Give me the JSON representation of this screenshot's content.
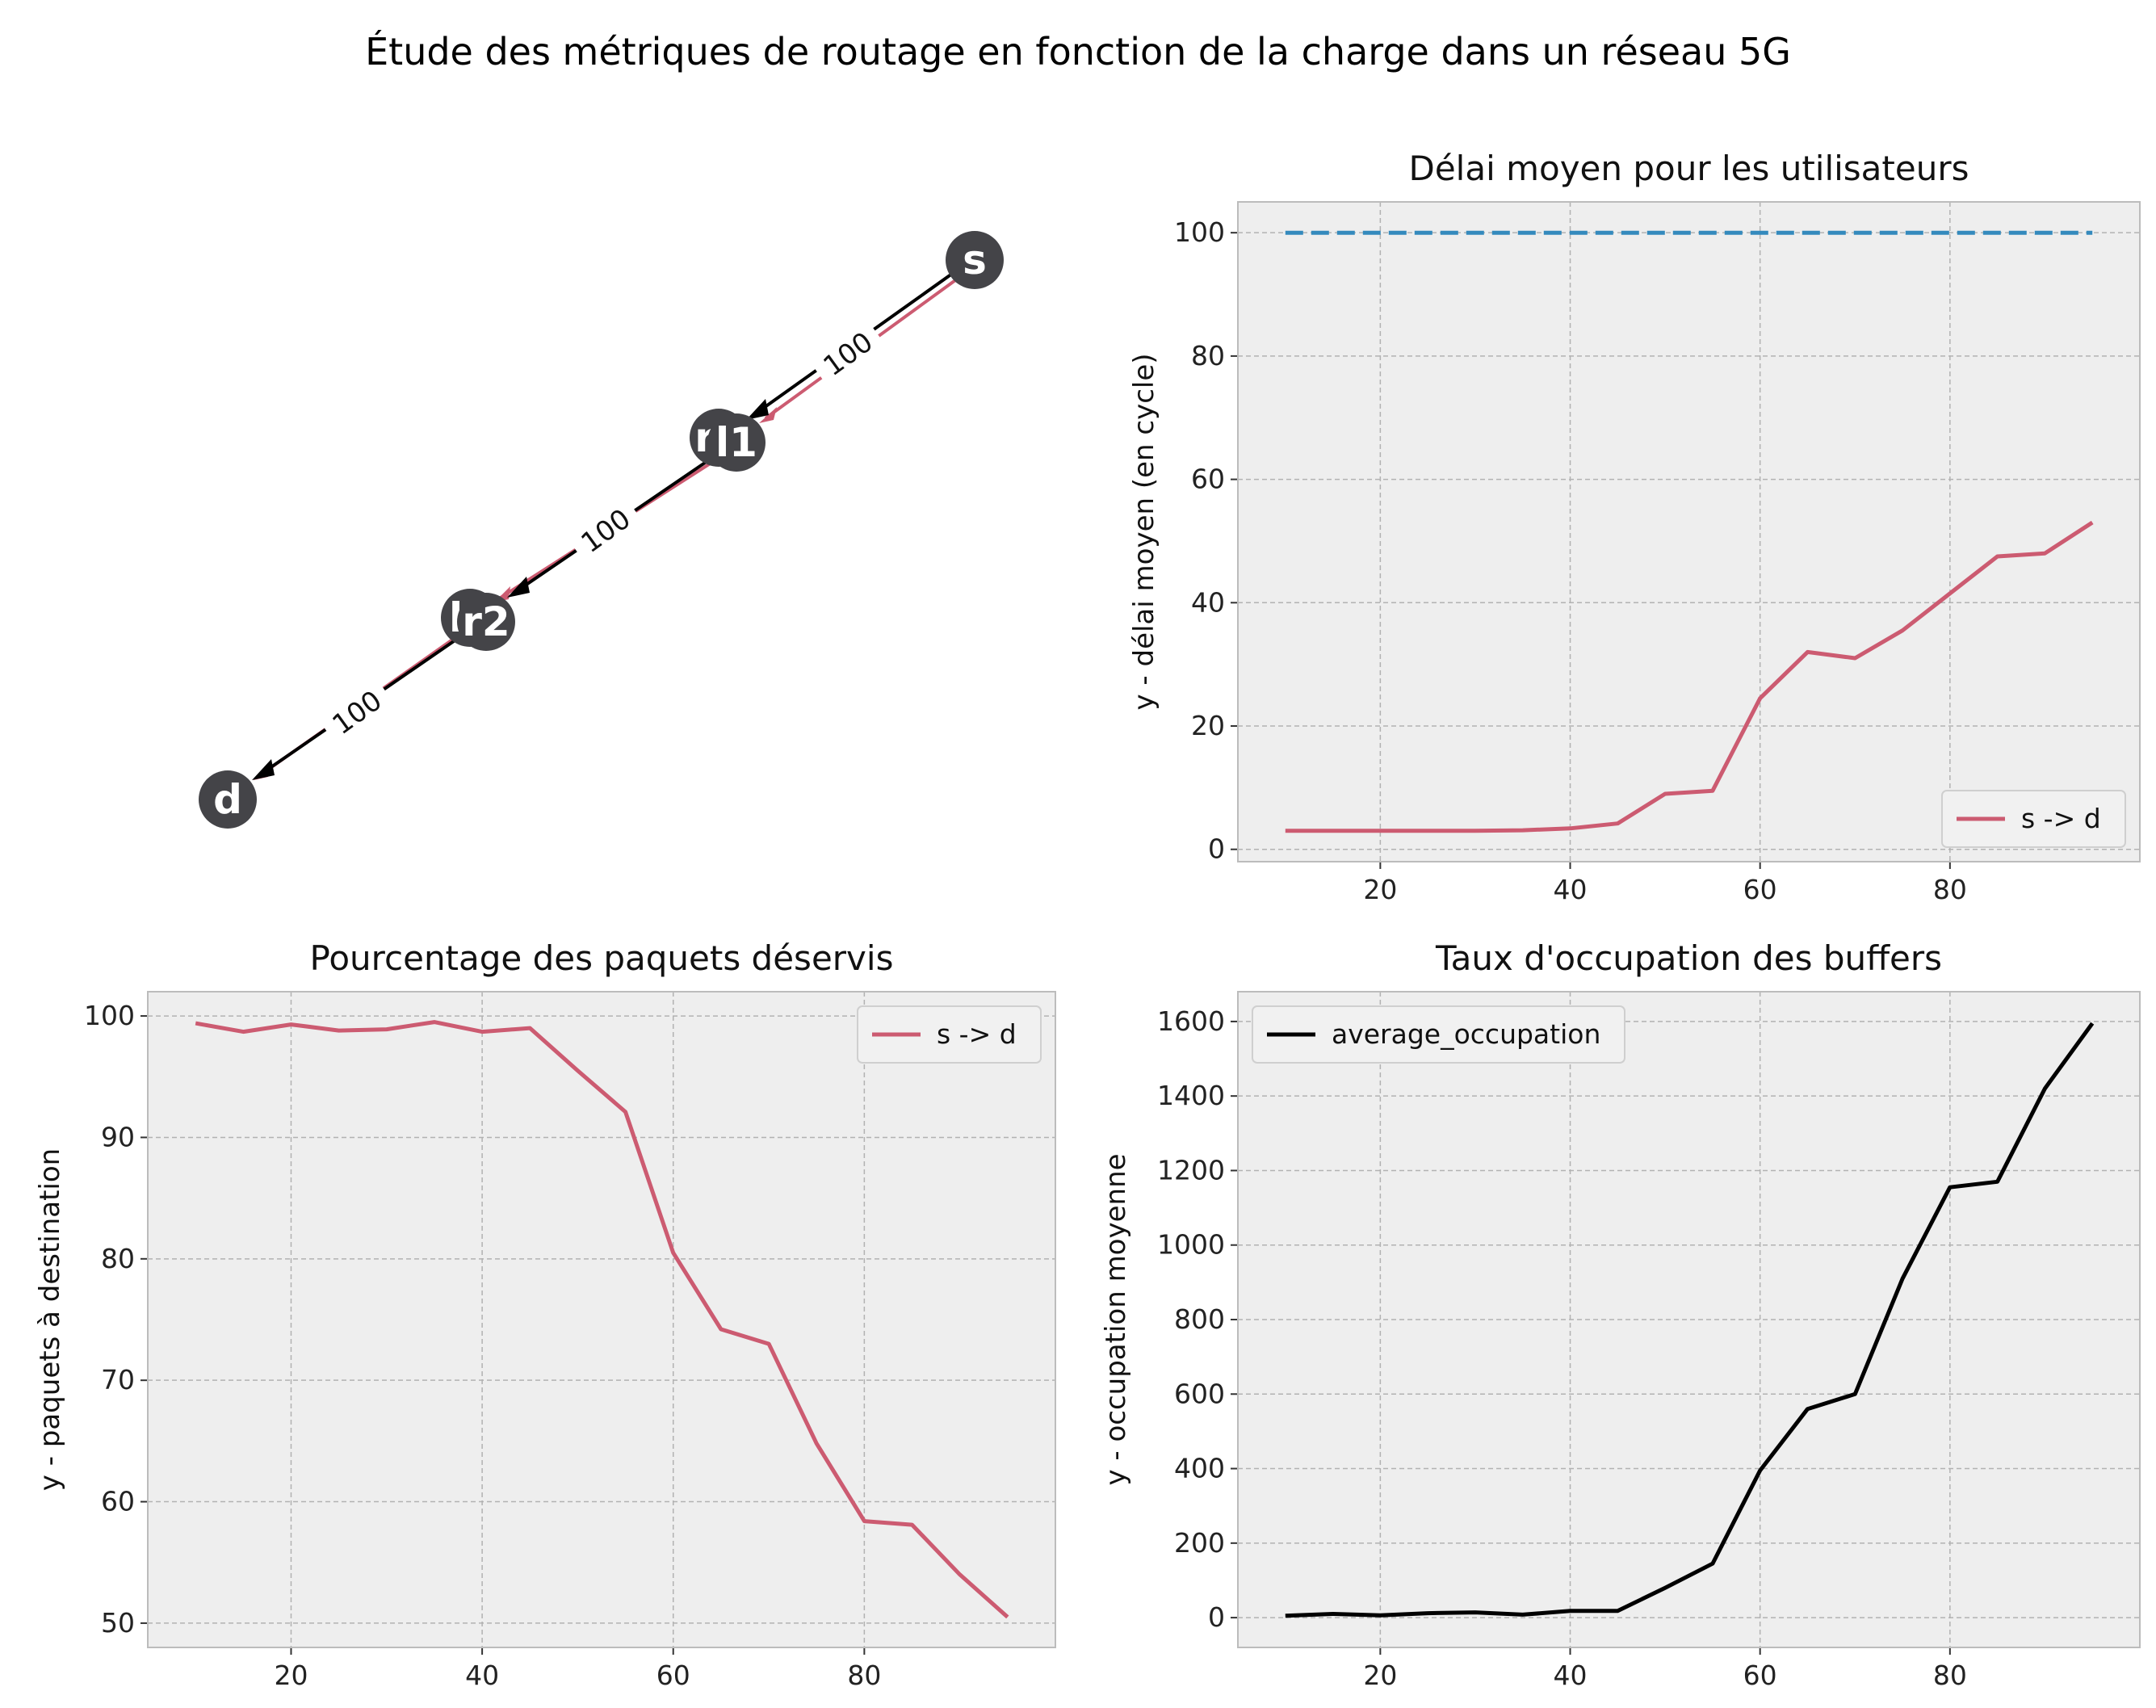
{
  "title": "Étude des métriques de routage en fonction de la charge dans un réseau 5G",
  "colors": {
    "panel_bg": "#eeeeee",
    "grid": "#b2b2b2",
    "series_red": "#cc5b71",
    "reference_blue": "#348abd",
    "black": "#000000",
    "node_fill": "#444448",
    "node_text": "#ffffff"
  },
  "network": {
    "nodes": [
      {
        "id": "s",
        "label": "s"
      },
      {
        "id": "r1",
        "label": "r1"
      },
      {
        "id": "l1",
        "label": "l1"
      },
      {
        "id": "l2",
        "label": "l2"
      },
      {
        "id": "r2",
        "label": "r2"
      },
      {
        "id": "d",
        "label": "d"
      }
    ],
    "edge_labels": [
      "100",
      "100",
      "100"
    ]
  },
  "chart_data": [
    {
      "type": "line",
      "title": "Délai moyen pour les utilisateurs",
      "xlabel": "",
      "ylabel": "y - délai moyen (en cycle)",
      "x": [
        10,
        15,
        20,
        25,
        30,
        35,
        40,
        45,
        50,
        55,
        60,
        65,
        70,
        75,
        80,
        85,
        90,
        95
      ],
      "xlim": [
        5,
        100
      ],
      "ylim": [
        -2,
        105
      ],
      "xticks": [
        "20",
        "40",
        "60",
        "80"
      ],
      "yticks": [
        "0",
        "20",
        "40",
        "60",
        "80",
        "100"
      ],
      "series": [
        {
          "name": "s -> d",
          "color": "#cc5b71",
          "style": "solid",
          "values": [
            3.0,
            3.0,
            3.0,
            3.0,
            3.0,
            3.1,
            3.4,
            4.2,
            9.0,
            9.5,
            24.5,
            32.0,
            31.0,
            35.5,
            41.5,
            47.5,
            48.0,
            53.0
          ]
        },
        {
          "name": "",
          "color": "#348abd",
          "style": "dashed",
          "values": [
            100,
            100,
            100,
            100,
            100,
            100,
            100,
            100,
            100,
            100,
            100,
            100,
            100,
            100,
            100,
            100,
            100,
            100
          ]
        }
      ],
      "legend": {
        "entries": [
          "s -> d"
        ],
        "location": "lower-right"
      },
      "grid": true
    },
    {
      "type": "line",
      "title": "Pourcentage des paquets déservis",
      "xlabel": "",
      "ylabel": "y - paquets à destination",
      "x": [
        10,
        15,
        20,
        25,
        30,
        35,
        40,
        45,
        50,
        55,
        60,
        65,
        70,
        75,
        80,
        85,
        90,
        95
      ],
      "xlim": [
        5,
        100
      ],
      "ylim": [
        48,
        102
      ],
      "xticks": [
        "20",
        "40",
        "60",
        "80"
      ],
      "yticks": [
        "50",
        "60",
        "70",
        "80",
        "90",
        "100"
      ],
      "series": [
        {
          "name": "s -> d",
          "color": "#cc5b71",
          "style": "solid",
          "values": [
            99.4,
            98.7,
            99.3,
            98.8,
            98.9,
            99.5,
            98.7,
            99.0,
            95.5,
            92.1,
            80.5,
            74.2,
            73.0,
            64.8,
            58.4,
            58.1,
            54.0,
            50.5
          ]
        }
      ],
      "legend": {
        "entries": [
          "s -> d"
        ],
        "location": "upper-right"
      },
      "grid": true
    },
    {
      "type": "line",
      "title": "Taux d'occupation des buffers",
      "xlabel": "",
      "ylabel": "y - occupation moyenne",
      "x": [
        10,
        15,
        20,
        25,
        30,
        35,
        40,
        45,
        50,
        55,
        60,
        65,
        70,
        75,
        80,
        85,
        90,
        95
      ],
      "xlim": [
        5,
        100
      ],
      "ylim": [
        -80,
        1680
      ],
      "xticks": [
        "20",
        "40",
        "60",
        "80"
      ],
      "yticks": [
        "0",
        "200",
        "400",
        "600",
        "800",
        "1000",
        "1200",
        "1400",
        "1600"
      ],
      "series": [
        {
          "name": "average_occupation",
          "color": "#000000",
          "style": "solid",
          "values": [
            5,
            10,
            6,
            12,
            14,
            8,
            18,
            18,
            80,
            145,
            395,
            560,
            600,
            910,
            1155,
            1170,
            1420,
            1595
          ]
        }
      ],
      "legend": {
        "entries": [
          "average_occupation"
        ],
        "location": "upper-left"
      },
      "grid": true
    }
  ]
}
